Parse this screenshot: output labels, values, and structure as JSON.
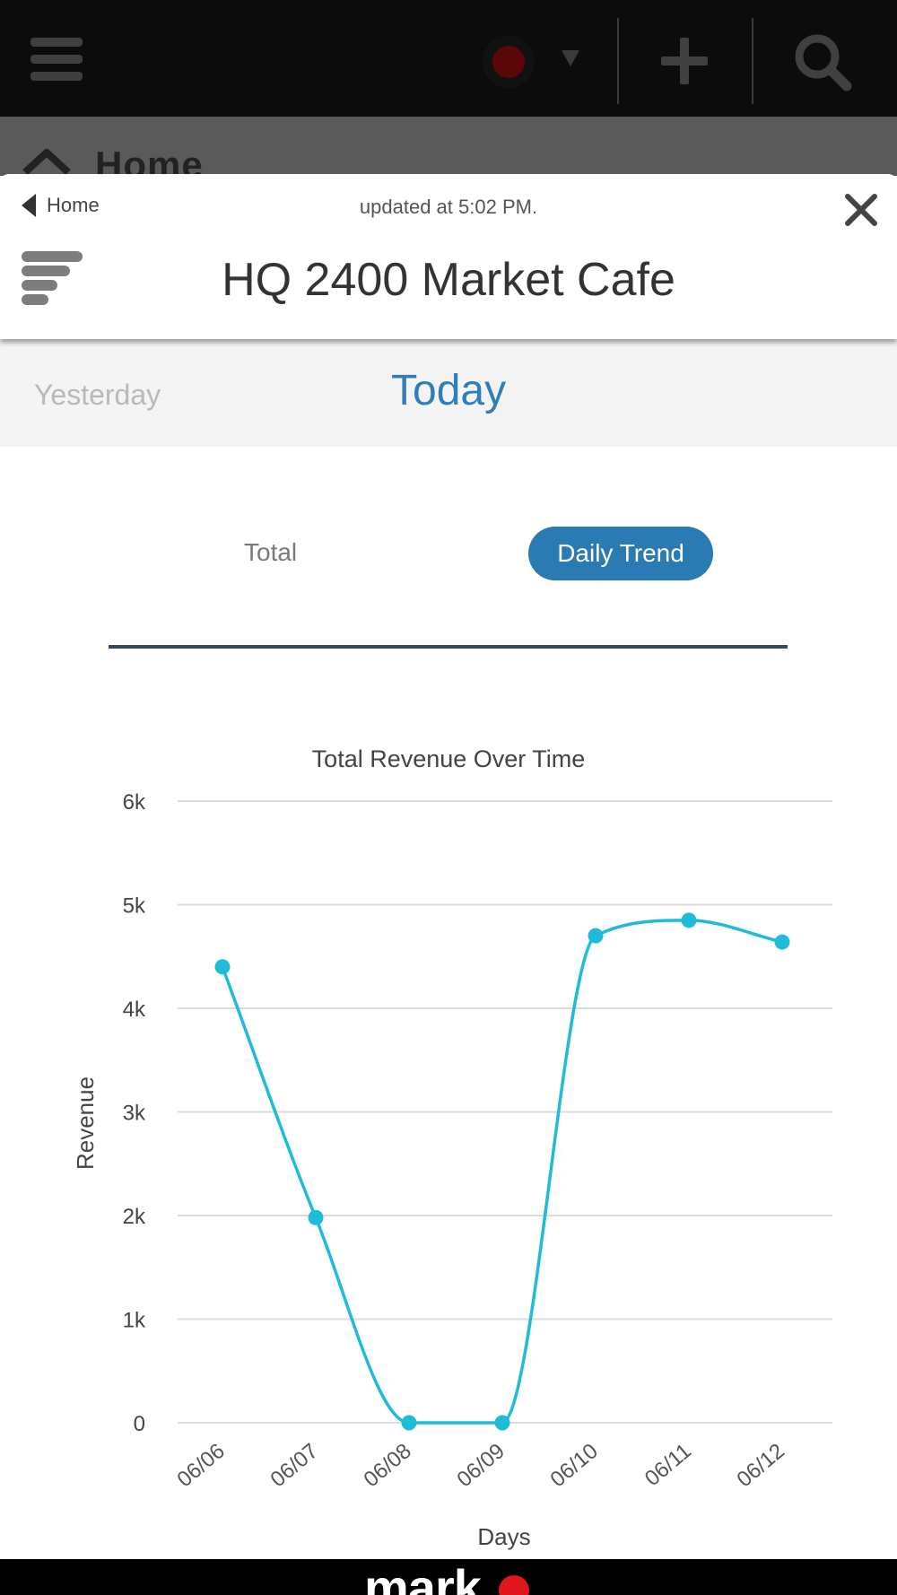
{
  "topbar": {
    "status_color": "#5b0709"
  },
  "underlying_page": {
    "title": "Home"
  },
  "modal": {
    "back_label": "Home",
    "updated_text": "updated at 5:02 PM.",
    "title": "HQ 2400 Market Cafe",
    "day_tabs": {
      "yesterday": "Yesterday",
      "today": "Today",
      "selected": "Today"
    },
    "segments": {
      "total": "Total",
      "daily_trend": "Daily Trend",
      "selected": "Daily Trend"
    }
  },
  "chart_data": {
    "type": "line",
    "title": "Total Revenue Over Time",
    "xlabel": "Days",
    "ylabel": "Revenue",
    "categories": [
      "06/06",
      "06/07",
      "06/08",
      "06/09",
      "06/10",
      "06/11",
      "06/12"
    ],
    "series": [
      {
        "values": [
          4400,
          1980,
          0,
          0,
          4700,
          4850,
          4640
        ],
        "color": "#1fbcd8"
      }
    ],
    "ylim": [
      0,
      6000
    ],
    "yticks": [
      {
        "value": 0,
        "label": "0"
      },
      {
        "value": 1000,
        "label": "1k"
      },
      {
        "value": 2000,
        "label": "2k"
      },
      {
        "value": 3000,
        "label": "3k"
      },
      {
        "value": 4000,
        "label": "4k"
      },
      {
        "value": 5000,
        "label": "5k"
      },
      {
        "value": 6000,
        "label": "6k"
      }
    ],
    "grid": true,
    "legend": "none"
  },
  "footer": {
    "brand": "mark"
  },
  "colors": {
    "accent": "#2a7ab4",
    "today": "#2f7fb8",
    "brand_dot": "#e0161b"
  }
}
